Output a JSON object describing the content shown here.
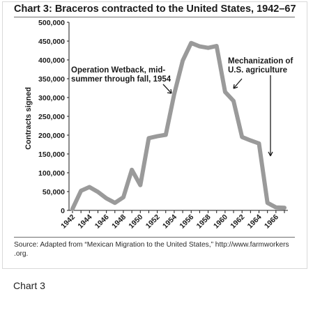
{
  "chart_data": {
    "type": "line",
    "title": "Chart 3: Braceros contracted to the United States, 1942–67",
    "ylabel": "Contracts signed",
    "xlabel": "",
    "x": [
      1942,
      1943,
      1944,
      1945,
      1946,
      1947,
      1948,
      1949,
      1950,
      1951,
      1952,
      1953,
      1954,
      1955,
      1956,
      1957,
      1958,
      1959,
      1960,
      1961,
      1962,
      1963,
      1964,
      1965,
      1966,
      1967
    ],
    "values": [
      4000,
      52000,
      62000,
      49000,
      32000,
      20000,
      35000,
      108000,
      67000,
      192000,
      197000,
      201000,
      309000,
      398000,
      445000,
      436000,
      432000,
      437000,
      315000,
      291000,
      195000,
      186000,
      178000,
      20000,
      8000,
      7000
    ],
    "xlim": [
      1942,
      1967
    ],
    "ylim": [
      0,
      500000
    ],
    "x_tick_labels": [
      "1942",
      "1944",
      "1946",
      "1948",
      "1950",
      "1952",
      "1954",
      "1956",
      "1958",
      "1960",
      "1962",
      "1964",
      "1966"
    ],
    "y_tick_labels": [
      "0",
      "50,000",
      "100,000",
      "150,000",
      "200,000",
      "250,000",
      "300,000",
      "350,000",
      "400,000",
      "450,000",
      "500,000"
    ],
    "line_color": "#9a9a9a",
    "grid": false,
    "annotations": [
      {
        "lines": [
          "Operation Wetback, mid-",
          "summer through fall, 1954"
        ],
        "x": 1954
      },
      {
        "lines": [
          "Mechanization of",
          "U.S. agriculture"
        ],
        "x": 1964.5
      }
    ]
  },
  "source": {
    "line1": "Source: Adapted from “Mexican Migration to the United States,” http://www.farmworkers",
    "line2": ".org."
  },
  "caption": "Chart 3"
}
